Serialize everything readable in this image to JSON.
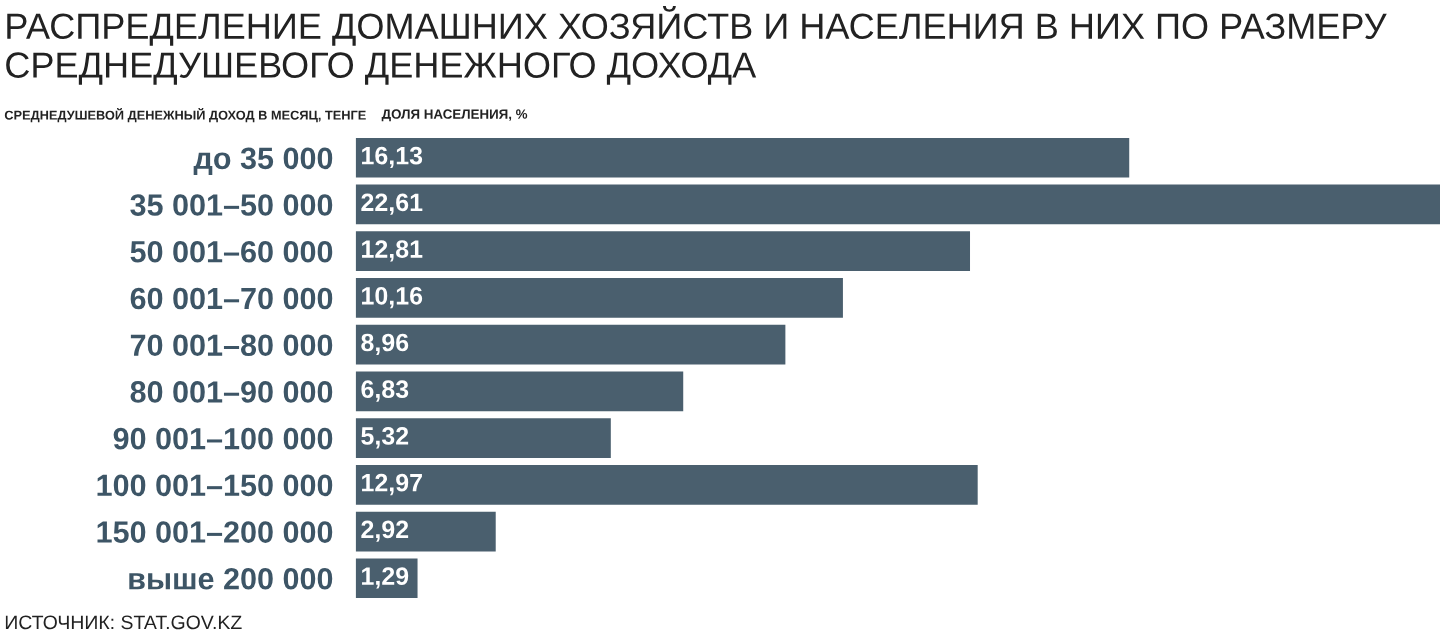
{
  "chart_data": {
    "type": "bar",
    "orientation": "horizontal",
    "title": "РАСПРЕДЕЛЕНИЕ ДОМАШНИХ ХОЗЯЙСТВ И НАСЕЛЕНИЯ В НИХ ПО РАЗМЕРУ СРЕДНЕДУШЕВОГО ДЕНЕЖНОГО ДОХОДА",
    "ylabel": "СРЕДНЕДУШЕВОЙ ДЕНЕЖНЫЙ ДОХОД В МЕСЯЦ, ТЕНГЕ",
    "xlabel": "ДОЛЯ НАСЕЛЕНИЯ, %",
    "categories": [
      "до 35 000",
      "35 001–50 000",
      "50 001–60 000",
      "60 001–70 000",
      "70 001–80 000",
      "80 001–90 000",
      "90 001–100 000",
      "100 001–150 000",
      "150 001–200 000",
      "выше 200 000"
    ],
    "values": [
      16.13,
      22.61,
      12.81,
      10.16,
      8.96,
      6.83,
      5.32,
      12.97,
      2.92,
      1.29
    ],
    "value_labels": [
      "16,13",
      "22,61",
      "12,81",
      "10,16",
      "8,96",
      "6,83",
      "5,32",
      "12,97",
      "2,92",
      "1,29"
    ],
    "color": "#4a5f6e",
    "annotations": [
      "ИСТОЧНИК: STAT.GOV.KZ"
    ]
  }
}
